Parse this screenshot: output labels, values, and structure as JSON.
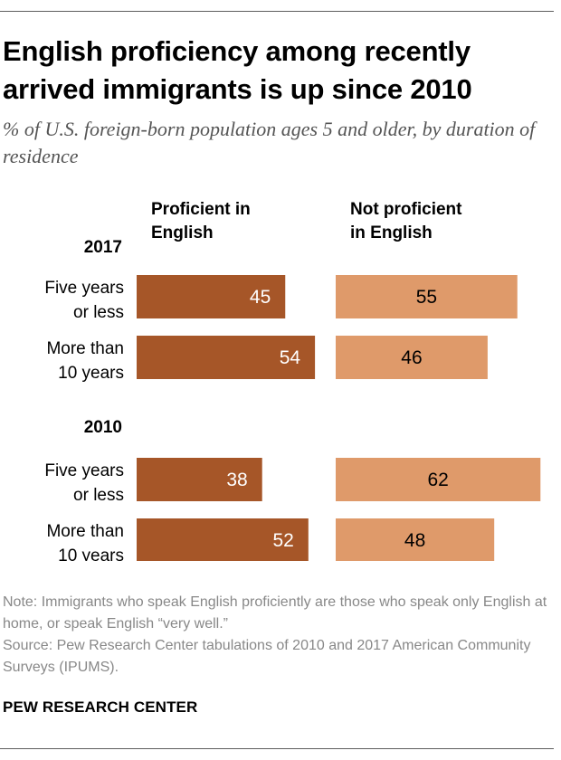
{
  "title": "English proficiency among recently arrived immigrants is up since 2010",
  "subtitle": "% of U.S. foreign-born population ages 5 and older, by duration of residence",
  "note": "Note: Immigrants who speak English proficiently are those who speak only English at home, or speak English “very well.”",
  "source": "Source: Pew Research Center tabulations of 2010 and 2017 American Community Surveys (IPUMS).",
  "brand": "PEW RESEARCH CENTER",
  "chart_data": {
    "type": "bar",
    "orientation": "horizontal",
    "xlim": [
      0,
      100
    ],
    "series": [
      {
        "name": "Proficient in English",
        "label_lines": [
          "Proficient in",
          "English"
        ],
        "color": "#a65628",
        "label_color": "#ffffff"
      },
      {
        "name": "Not proficient in English",
        "label_lines": [
          "Not proficient",
          "in English"
        ],
        "color": "#df9a6a",
        "label_color": "#000000"
      }
    ],
    "groups": [
      {
        "year": "2017",
        "rows": [
          {
            "label_lines": [
              "Five years",
              "or less"
            ],
            "values": [
              45,
              55
            ]
          },
          {
            "label_lines": [
              "More than",
              "10 years"
            ],
            "values": [
              54,
              46
            ]
          }
        ]
      },
      {
        "year": "2010",
        "rows": [
          {
            "label_lines": [
              "Five years",
              "or less"
            ],
            "values": [
              38,
              62
            ]
          },
          {
            "label_lines": [
              "More than",
              "10 years"
            ],
            "values": [
              52,
              48
            ]
          }
        ]
      }
    ]
  }
}
